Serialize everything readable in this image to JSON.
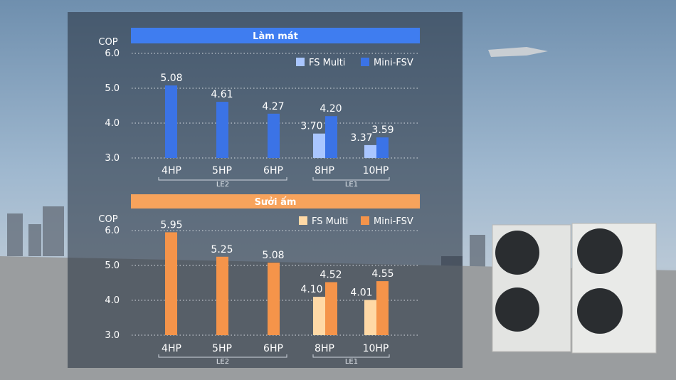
{
  "chart_data": [
    {
      "type": "bar",
      "title": "Làm mát",
      "ylabel": "COP",
      "ylim": [
        3.0,
        6.0
      ],
      "yticks": [
        "3.0",
        "4.0",
        "5.0",
        "6.0"
      ],
      "categories": [
        "4HP",
        "5HP",
        "6HP",
        "8HP",
        "10HP"
      ],
      "series": [
        {
          "name": "FS Multi",
          "values": [
            null,
            null,
            null,
            3.7,
            3.37
          ],
          "labels": [
            "",
            "",
            "",
            "3.70",
            "3.37"
          ]
        },
        {
          "name": "Mini-FSV",
          "values": [
            5.08,
            4.61,
            4.27,
            4.2,
            3.59
          ],
          "labels": [
            "5.08",
            "4.61",
            "4.27",
            "4.20",
            "3.59"
          ]
        }
      ],
      "groups": [
        {
          "label": "LE2",
          "categories": [
            "4HP",
            "5HP",
            "6HP"
          ]
        },
        {
          "label": "LE1",
          "categories": [
            "8HP",
            "10HP"
          ]
        }
      ],
      "colors": {
        "header": "#3f7df0",
        "series_1": "#a9c6ff",
        "series_2": "#3b73e6"
      },
      "legend": "top-right",
      "grid": true
    },
    {
      "type": "bar",
      "title": "Sưởi ấm",
      "ylabel": "COP",
      "ylim": [
        3.0,
        6.0
      ],
      "yticks": [
        "3.0",
        "4.0",
        "5.0",
        "6.0"
      ],
      "categories": [
        "4HP",
        "5HP",
        "6HP",
        "8HP",
        "10HP"
      ],
      "series": [
        {
          "name": "FS Multi",
          "values": [
            null,
            null,
            null,
            4.1,
            4.01
          ],
          "labels": [
            "",
            "",
            "",
            "4.10",
            "4.01"
          ]
        },
        {
          "name": "Mini-FSV",
          "values": [
            5.95,
            5.25,
            5.08,
            4.52,
            4.55
          ],
          "labels": [
            "5.95",
            "5.25",
            "5.08",
            "4.52",
            "4.55"
          ]
        }
      ],
      "groups": [
        {
          "label": "LE2",
          "categories": [
            "4HP",
            "5HP",
            "6HP"
          ]
        },
        {
          "label": "LE1",
          "categories": [
            "8HP",
            "10HP"
          ]
        }
      ],
      "colors": {
        "header": "#f7a35c",
        "series_1": "#ffd9a6",
        "series_2": "#f5944a"
      },
      "legend": "top-right",
      "grid": true
    }
  ]
}
